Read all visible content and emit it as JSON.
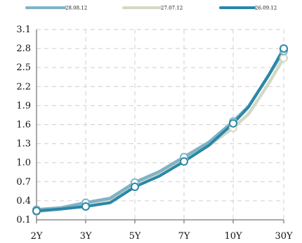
{
  "chart_data": {
    "type": "line",
    "categories": [
      "2Y",
      "3Y",
      "5Y",
      "7Y",
      "10Y",
      "30Y"
    ],
    "yticks": [
      "0.1",
      "0.4",
      "0.7",
      "1.0",
      "1.3",
      "1.6",
      "1.9",
      "2.2",
      "2.5",
      "2.8",
      "3.1"
    ],
    "ylim": [
      0.1,
      3.1
    ],
    "grid": true,
    "legend_position": "top",
    "series": [
      {
        "name": "28.08.12",
        "color": "#7fb3c6",
        "values": [
          0.26,
          0.37,
          0.69,
          1.09,
          1.65,
          2.76
        ],
        "path_values": [
          0.26,
          0.29,
          0.37,
          0.44,
          0.69,
          0.86,
          1.09,
          1.32,
          1.65,
          1.89,
          2.37,
          2.76
        ]
      },
      {
        "name": "27.07.12",
        "color": "#d3d9c4",
        "values": [
          0.23,
          0.35,
          0.67,
          1.05,
          1.55,
          2.65
        ],
        "path_values": [
          0.23,
          0.27,
          0.35,
          0.42,
          0.67,
          0.84,
          1.05,
          1.27,
          1.55,
          1.77,
          2.24,
          2.65
        ]
      },
      {
        "name": "26.09.12",
        "color": "#2a87a8",
        "values": [
          0.24,
          0.31,
          0.62,
          1.02,
          1.62,
          2.8
        ],
        "path_values": [
          0.24,
          0.27,
          0.31,
          0.37,
          0.62,
          0.79,
          1.02,
          1.27,
          1.62,
          1.88,
          2.37,
          2.8
        ]
      }
    ]
  }
}
